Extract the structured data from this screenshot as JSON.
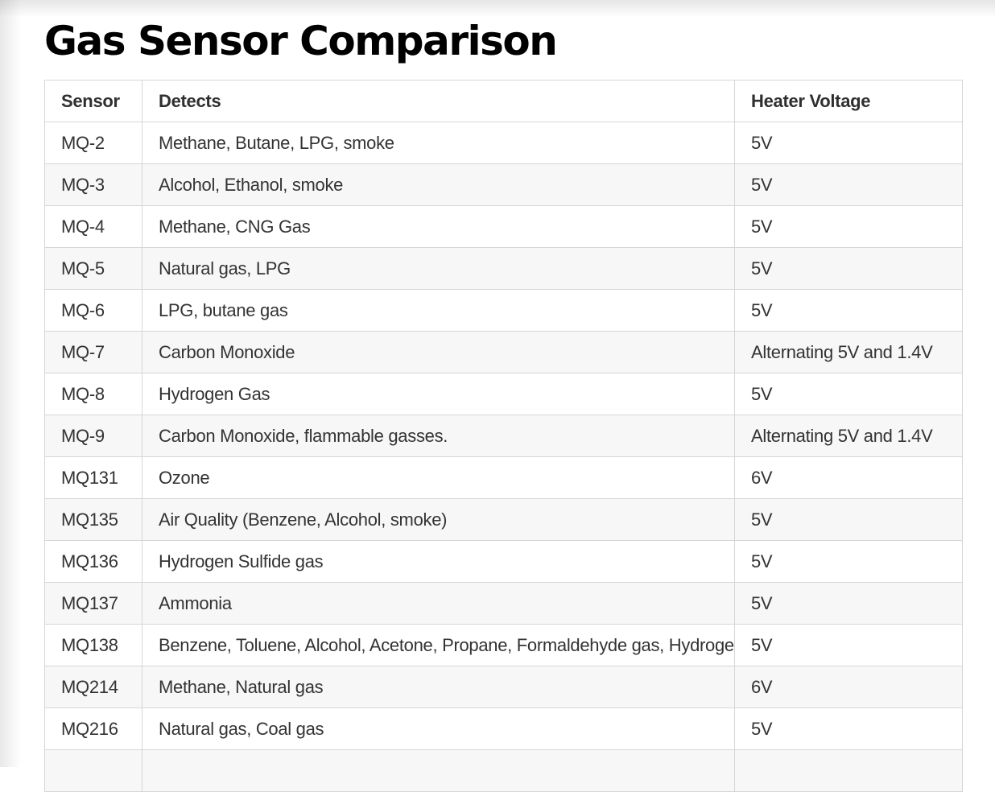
{
  "page": {
    "title": "Gas Sensor Comparison"
  },
  "table": {
    "headers": {
      "sensor": "Sensor",
      "detects": "Detects",
      "heater_voltage": "Heater Voltage"
    },
    "rows": [
      {
        "sensor": "MQ-2",
        "detects": "Methane, Butane, LPG, smoke",
        "heater_voltage": "5V"
      },
      {
        "sensor": "MQ-3",
        "detects": "Alcohol, Ethanol, smoke",
        "heater_voltage": "5V"
      },
      {
        "sensor": "MQ-4",
        "detects": "Methane, CNG Gas",
        "heater_voltage": "5V"
      },
      {
        "sensor": "MQ-5",
        "detects": "Natural gas, LPG",
        "heater_voltage": "5V"
      },
      {
        "sensor": "MQ-6",
        "detects": "LPG, butane gas",
        "heater_voltage": "5V"
      },
      {
        "sensor": "MQ-7",
        "detects": "Carbon Monoxide",
        "heater_voltage": "Alternating 5V and 1.4V"
      },
      {
        "sensor": "MQ-8",
        "detects": "Hydrogen Gas",
        "heater_voltage": "5V"
      },
      {
        "sensor": "MQ-9",
        "detects": "Carbon Monoxide, flammable gasses.",
        "heater_voltage": "Alternating 5V and 1.4V"
      },
      {
        "sensor": "MQ131",
        "detects": "Ozone",
        "heater_voltage": "6V"
      },
      {
        "sensor": "MQ135",
        "detects": "Air Quality (Benzene, Alcohol, smoke)",
        "heater_voltage": "5V"
      },
      {
        "sensor": "MQ136",
        "detects": "Hydrogen Sulfide gas",
        "heater_voltage": "5V"
      },
      {
        "sensor": "MQ137",
        "detects": "Ammonia",
        "heater_voltage": "5V"
      },
      {
        "sensor": "MQ138",
        "detects": "Benzene, Toluene, Alcohol, Acetone, Propane, Formaldehyde gas, Hydrogen",
        "heater_voltage": "5V"
      },
      {
        "sensor": "MQ214",
        "detects": "Methane, Natural gas",
        "heater_voltage": "6V"
      },
      {
        "sensor": "MQ216",
        "detects": "Natural gas, Coal gas",
        "heater_voltage": "5V"
      },
      {
        "sensor": "",
        "detects": "",
        "heater_voltage": ""
      }
    ]
  }
}
